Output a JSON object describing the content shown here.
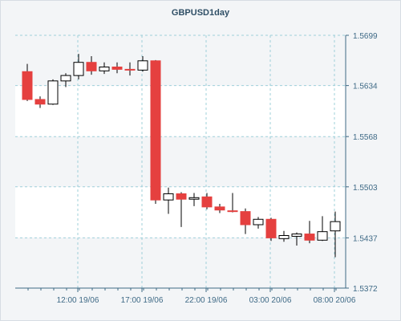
{
  "chart_data": {
    "type": "candlestick",
    "title": "GBPUSD1day",
    "y_ticks": [
      "1.5699",
      "1.5634",
      "1.5568",
      "1.5503",
      "1.5437",
      "1.5372"
    ],
    "ylim": [
      1.5372,
      1.5699
    ],
    "x_ticks": [
      "12:00 19/06",
      "17:00 19/06",
      "22:00 19/06",
      "03:00 20/06",
      "08:00 20/06"
    ],
    "grid": true,
    "colors": {
      "bullish": "#ffffff",
      "bearish": "#e5403f",
      "outline": "#000000",
      "grid": "#9fd0da",
      "axis": "#3f6a86"
    },
    "candles": [
      {
        "open": 1.5652,
        "high": 1.5662,
        "low": 1.5614,
        "close": 1.5616
      },
      {
        "open": 1.5616,
        "high": 1.562,
        "low": 1.5605,
        "close": 1.561
      },
      {
        "open": 1.561,
        "high": 1.5642,
        "low": 1.5609,
        "close": 1.564
      },
      {
        "open": 1.564,
        "high": 1.565,
        "low": 1.5632,
        "close": 1.5647
      },
      {
        "open": 1.5647,
        "high": 1.5675,
        "low": 1.5642,
        "close": 1.5664
      },
      {
        "open": 1.5664,
        "high": 1.5672,
        "low": 1.5648,
        "close": 1.5653
      },
      {
        "open": 1.5653,
        "high": 1.5664,
        "low": 1.5649,
        "close": 1.5658
      },
      {
        "open": 1.5658,
        "high": 1.5664,
        "low": 1.565,
        "close": 1.5655
      },
      {
        "open": 1.5655,
        "high": 1.5664,
        "low": 1.5647,
        "close": 1.5654
      },
      {
        "open": 1.5654,
        "high": 1.5672,
        "low": 1.5652,
        "close": 1.5666
      },
      {
        "open": 1.5666,
        "high": 1.5667,
        "low": 1.5481,
        "close": 1.5486
      },
      {
        "open": 1.5486,
        "high": 1.5502,
        "low": 1.5468,
        "close": 1.5494
      },
      {
        "open": 1.5494,
        "high": 1.5496,
        "low": 1.5451,
        "close": 1.5487
      },
      {
        "open": 1.5487,
        "high": 1.5495,
        "low": 1.5478,
        "close": 1.5489
      },
      {
        "open": 1.549,
        "high": 1.5495,
        "low": 1.5474,
        "close": 1.5477
      },
      {
        "open": 1.5477,
        "high": 1.5481,
        "low": 1.5469,
        "close": 1.5473
      },
      {
        "open": 1.5472,
        "high": 1.5495,
        "low": 1.547,
        "close": 1.5471
      },
      {
        "open": 1.5471,
        "high": 1.5475,
        "low": 1.5442,
        "close": 1.5454
      },
      {
        "open": 1.5454,
        "high": 1.5464,
        "low": 1.5449,
        "close": 1.5461
      },
      {
        "open": 1.5461,
        "high": 1.5463,
        "low": 1.5433,
        "close": 1.5437
      },
      {
        "open": 1.5436,
        "high": 1.5446,
        "low": 1.5432,
        "close": 1.544
      },
      {
        "open": 1.5439,
        "high": 1.5444,
        "low": 1.5427,
        "close": 1.5442
      },
      {
        "open": 1.5442,
        "high": 1.5459,
        "low": 1.543,
        "close": 1.5434
      },
      {
        "open": 1.5434,
        "high": 1.5465,
        "low": 1.5433,
        "close": 1.5445
      },
      {
        "open": 1.5446,
        "high": 1.5471,
        "low": 1.5412,
        "close": 1.5458
      }
    ]
  }
}
